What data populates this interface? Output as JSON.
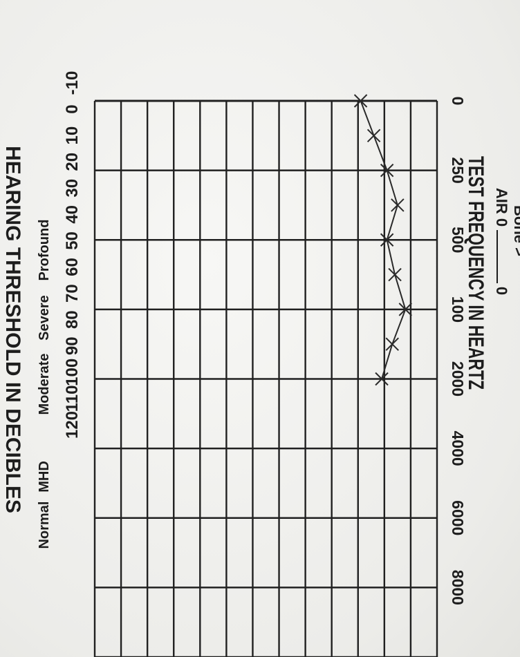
{
  "chart_data": {
    "type": "line",
    "ylabel": "HEARING THRESHOLD IN DECIBLES",
    "xlabel": "TEST FREQUENCY IN HEARTZ",
    "x_tick_labels": [
      "0",
      "250",
      "500",
      "100",
      "2000",
      "4000",
      "6000",
      "8000"
    ],
    "y_tick_labels": [
      "-10",
      "0",
      "10",
      "20",
      "30",
      "40",
      "50",
      "60",
      "70",
      "80",
      "90",
      "100",
      "110",
      "120"
    ],
    "ylim": [
      -10,
      120
    ],
    "severity_labels": [
      "Profound",
      "Severe",
      "Moderate",
      "MHD",
      "Normal"
    ],
    "legend": {
      "air": "AIR 0",
      "air_symbol": "0",
      "bone": "Bone >"
    },
    "series": [
      {
        "marker": "x",
        "points": [
          {
            "x": 0,
            "y": 19
          },
          {
            "x": 0.5,
            "y": 14
          },
          {
            "x": 1,
            "y": 9
          },
          {
            "x": 1.5,
            "y": 5
          },
          {
            "x": 2,
            "y": 9
          },
          {
            "x": 2.5,
            "y": 6
          },
          {
            "x": 3,
            "y": 2
          },
          {
            "x": 3.5,
            "y": 7
          },
          {
            "x": 4,
            "y": 11
          }
        ]
      }
    ]
  }
}
